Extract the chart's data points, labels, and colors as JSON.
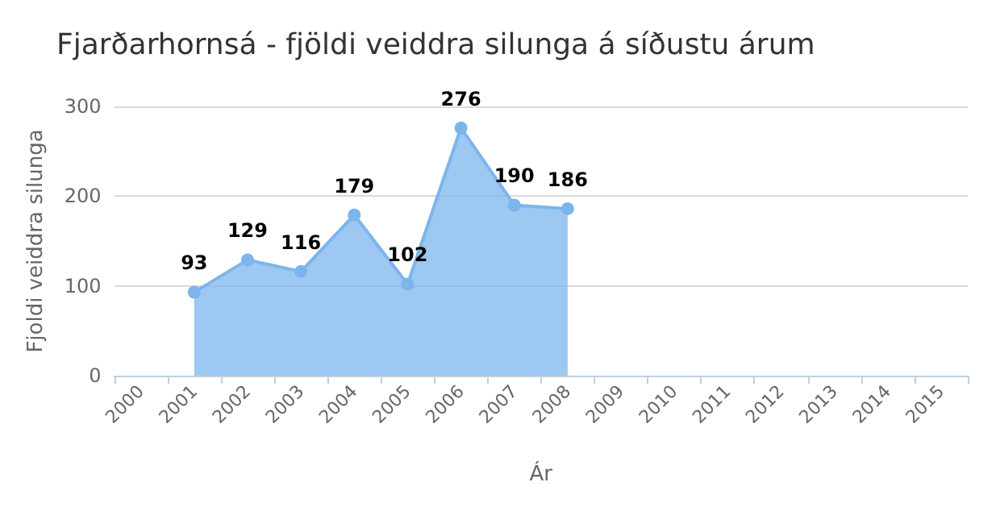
{
  "chart_data": {
    "type": "area",
    "title": "Fjarðarhornsá - fjöldi veiddra silunga á síðustu árum",
    "xlabel": "Ár",
    "ylabel": "Fjoldi veiddra silunga",
    "categories": [
      "2000",
      "2001",
      "2002",
      "2003",
      "2004",
      "2005",
      "2006",
      "2007",
      "2008",
      "2009",
      "2010",
      "2011",
      "2012",
      "2013",
      "2014",
      "2015"
    ],
    "series": [
      {
        "color": "#7cb5ec",
        "values": [
          null,
          93,
          129,
          116,
          179,
          102,
          276,
          190,
          186,
          null,
          null,
          null,
          null,
          null,
          null,
          null
        ]
      }
    ],
    "ylim": [
      0,
      300
    ],
    "yticks": [
      0,
      100,
      200,
      300
    ],
    "grid": "y",
    "marker": "circle",
    "data_labels": true
  }
}
